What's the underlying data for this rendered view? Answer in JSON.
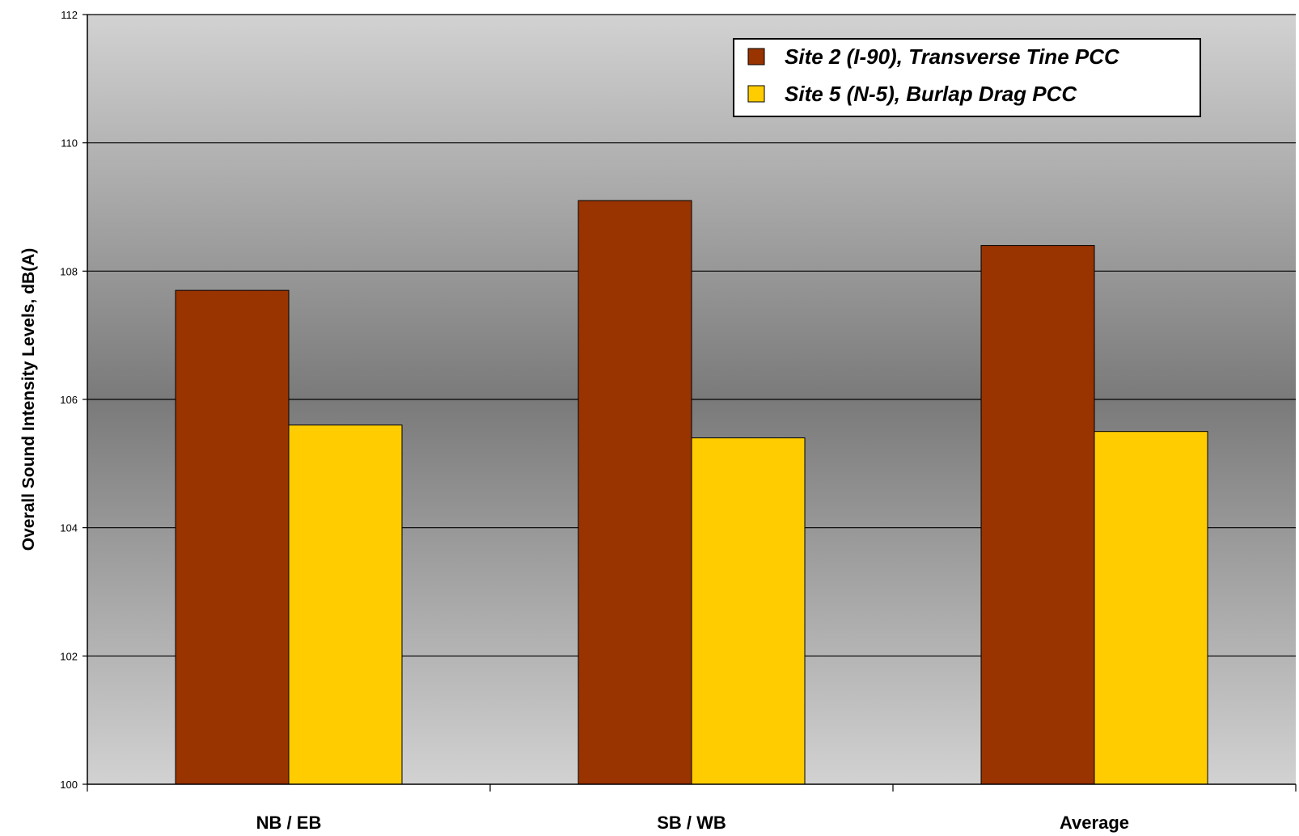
{
  "chart_data": {
    "type": "bar",
    "categories": [
      "NB / EB",
      "SB / WB",
      "Average"
    ],
    "series": [
      {
        "name": "Site 2 (I-90), Transverse Tine PCC",
        "color": "#993300",
        "values": [
          107.7,
          109.1,
          108.4
        ]
      },
      {
        "name": "Site 5 (N-5), Burlap Drag PCC",
        "color": "#FFCC00",
        "values": [
          105.6,
          105.4,
          105.5
        ]
      }
    ],
    "title": "",
    "xlabel": "",
    "ylabel": "Overall Sound Intensity Levels, dB(A)",
    "ylim": [
      100,
      112
    ],
    "yticks": [
      100,
      102,
      104,
      106,
      108,
      110,
      112
    ],
    "grid": true,
    "legend_position": "top-right"
  }
}
